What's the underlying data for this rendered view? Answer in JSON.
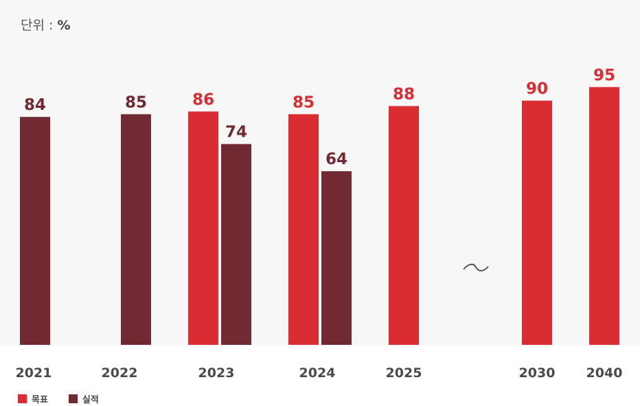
{
  "unit": {
    "prefix": "단위 : ",
    "value": "%"
  },
  "chart_data": {
    "type": "bar",
    "categories": [
      "2021",
      "2022",
      "2023",
      "2024",
      "2025",
      "2030",
      "2040"
    ],
    "series": [
      {
        "name": "목표",
        "color": "#d92c33",
        "values": [
          null,
          null,
          86,
          85,
          88,
          90,
          95
        ]
      },
      {
        "name": "실적",
        "color": "#722a32",
        "values": [
          84,
          85,
          74,
          64,
          null,
          null,
          null
        ]
      }
    ],
    "ylim": [
      0,
      100
    ],
    "break_marker": "~",
    "legend_position": "bottom-left",
    "grid": false
  }
}
